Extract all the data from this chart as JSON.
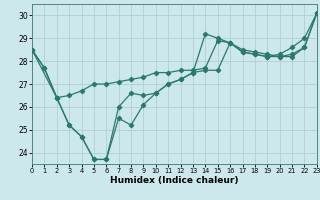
{
  "xlabel": "Humidex (Indice chaleur)",
  "bg_color": "#cde8ec",
  "grid_color": "#b0d0d4",
  "line_color": "#2a7a6a",
  "xlim": [
    0,
    23
  ],
  "ylim": [
    23.5,
    30.5
  ],
  "yticks": [
    24,
    25,
    26,
    27,
    28,
    29,
    30
  ],
  "xticks": [
    0,
    1,
    2,
    3,
    4,
    5,
    6,
    7,
    8,
    9,
    10,
    11,
    12,
    13,
    14,
    15,
    16,
    17,
    18,
    19,
    20,
    21,
    22,
    23
  ],
  "line1_x": [
    0,
    1,
    2,
    3,
    4,
    5,
    6,
    7,
    8,
    9,
    10,
    11,
    12,
    13,
    14,
    15,
    16,
    17,
    18,
    19,
    20,
    21,
    22,
    23
  ],
  "line1_y": [
    28.5,
    27.7,
    26.4,
    26.5,
    26.7,
    27.0,
    27.0,
    27.1,
    27.2,
    27.3,
    27.5,
    27.5,
    27.6,
    27.6,
    27.7,
    28.9,
    28.8,
    28.4,
    28.3,
    28.2,
    28.2,
    28.2,
    28.6,
    30.1
  ],
  "line2_x": [
    0,
    1,
    2,
    3,
    4,
    5,
    6,
    7,
    8,
    9,
    10,
    11,
    12,
    13,
    14,
    15,
    16,
    17,
    18,
    19,
    20,
    21,
    22,
    23
  ],
  "line2_y": [
    28.5,
    27.7,
    26.4,
    25.2,
    24.7,
    23.7,
    23.7,
    26.0,
    26.6,
    26.5,
    26.6,
    27.0,
    27.2,
    27.5,
    29.2,
    29.0,
    28.8,
    28.4,
    28.3,
    28.2,
    28.3,
    28.6,
    29.0,
    30.1
  ],
  "line3_x": [
    0,
    2,
    3,
    4,
    5,
    6,
    7,
    8,
    9,
    10,
    11,
    12,
    13,
    14,
    15,
    16,
    17,
    18,
    19,
    20,
    21,
    22,
    23
  ],
  "line3_y": [
    28.5,
    26.4,
    25.2,
    24.7,
    23.7,
    23.7,
    25.5,
    25.2,
    26.1,
    26.6,
    27.0,
    27.2,
    27.5,
    27.6,
    27.6,
    28.8,
    28.5,
    28.4,
    28.3,
    28.2,
    28.3,
    28.6,
    30.1
  ]
}
